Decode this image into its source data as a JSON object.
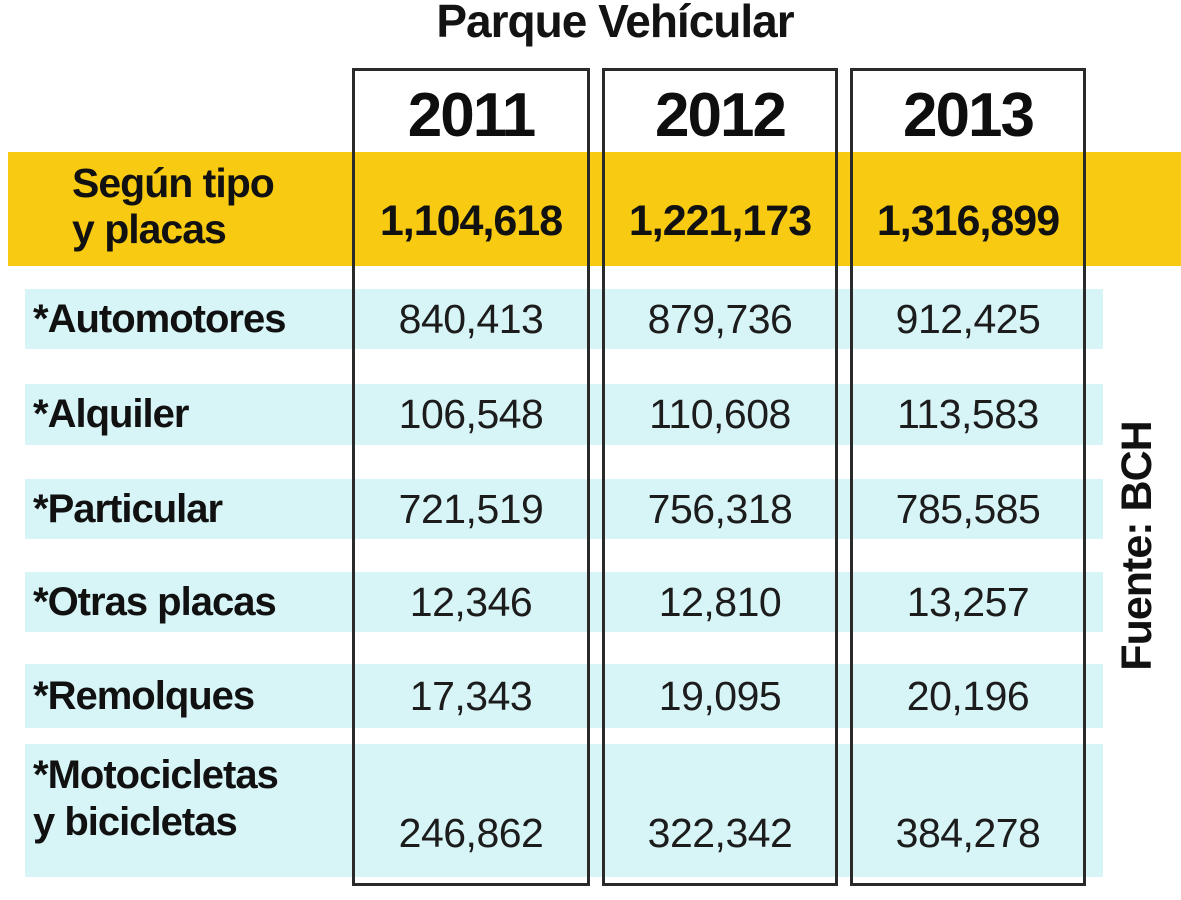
{
  "title": "Parque Vehícular",
  "source_label": "Fuente: BCH",
  "header": {
    "row_label_line1": "Según tipo",
    "row_label_line2": "y placas",
    "years": [
      "2011",
      "2012",
      "2013"
    ],
    "totals": [
      "1,104,618",
      "1,221,173",
      "1,316,899"
    ]
  },
  "rows": [
    {
      "label": "*Automotores",
      "values": [
        "840,413",
        "879,736",
        "912,425"
      ]
    },
    {
      "label": "*Alquiler",
      "values": [
        "106,548",
        "110,608",
        "113,583"
      ]
    },
    {
      "label": "*Particular",
      "values": [
        "721,519",
        "756,318",
        "785,585"
      ]
    },
    {
      "label": "*Otras placas",
      "values": [
        "12,346",
        "12,810",
        "13,257"
      ]
    },
    {
      "label": "*Remolques",
      "values": [
        "17,343",
        "19,095",
        "20,196"
      ]
    },
    {
      "label_line1": "*Motocicletas",
      "label_line2": "y bicicletas",
      "values": [
        "246,862",
        "322,342",
        "384,278"
      ]
    }
  ],
  "colors": {
    "header_band": "#F8CB12",
    "row_band": "#D7F4F6",
    "box_border": "#2a2a2a",
    "text": "#151515"
  },
  "chart_data": {
    "type": "table",
    "title": "Parque Vehícular",
    "columns": [
      "2011",
      "2012",
      "2013"
    ],
    "row_group_label": "Según tipo y placas",
    "totals": [
      1104618,
      1221173,
      1316899
    ],
    "rows": [
      {
        "label": "Automotores",
        "values": [
          840413,
          879736,
          912425
        ]
      },
      {
        "label": "Alquiler",
        "values": [
          106548,
          110608,
          113583
        ]
      },
      {
        "label": "Particular",
        "values": [
          721519,
          756318,
          785585
        ]
      },
      {
        "label": "Otras placas",
        "values": [
          12346,
          12810,
          13257
        ]
      },
      {
        "label": "Remolques",
        "values": [
          17343,
          19095,
          20196
        ]
      },
      {
        "label": "Motocicletas y bicicletas",
        "values": [
          246862,
          322342,
          384278
        ]
      }
    ],
    "source": "Fuente: BCH"
  }
}
